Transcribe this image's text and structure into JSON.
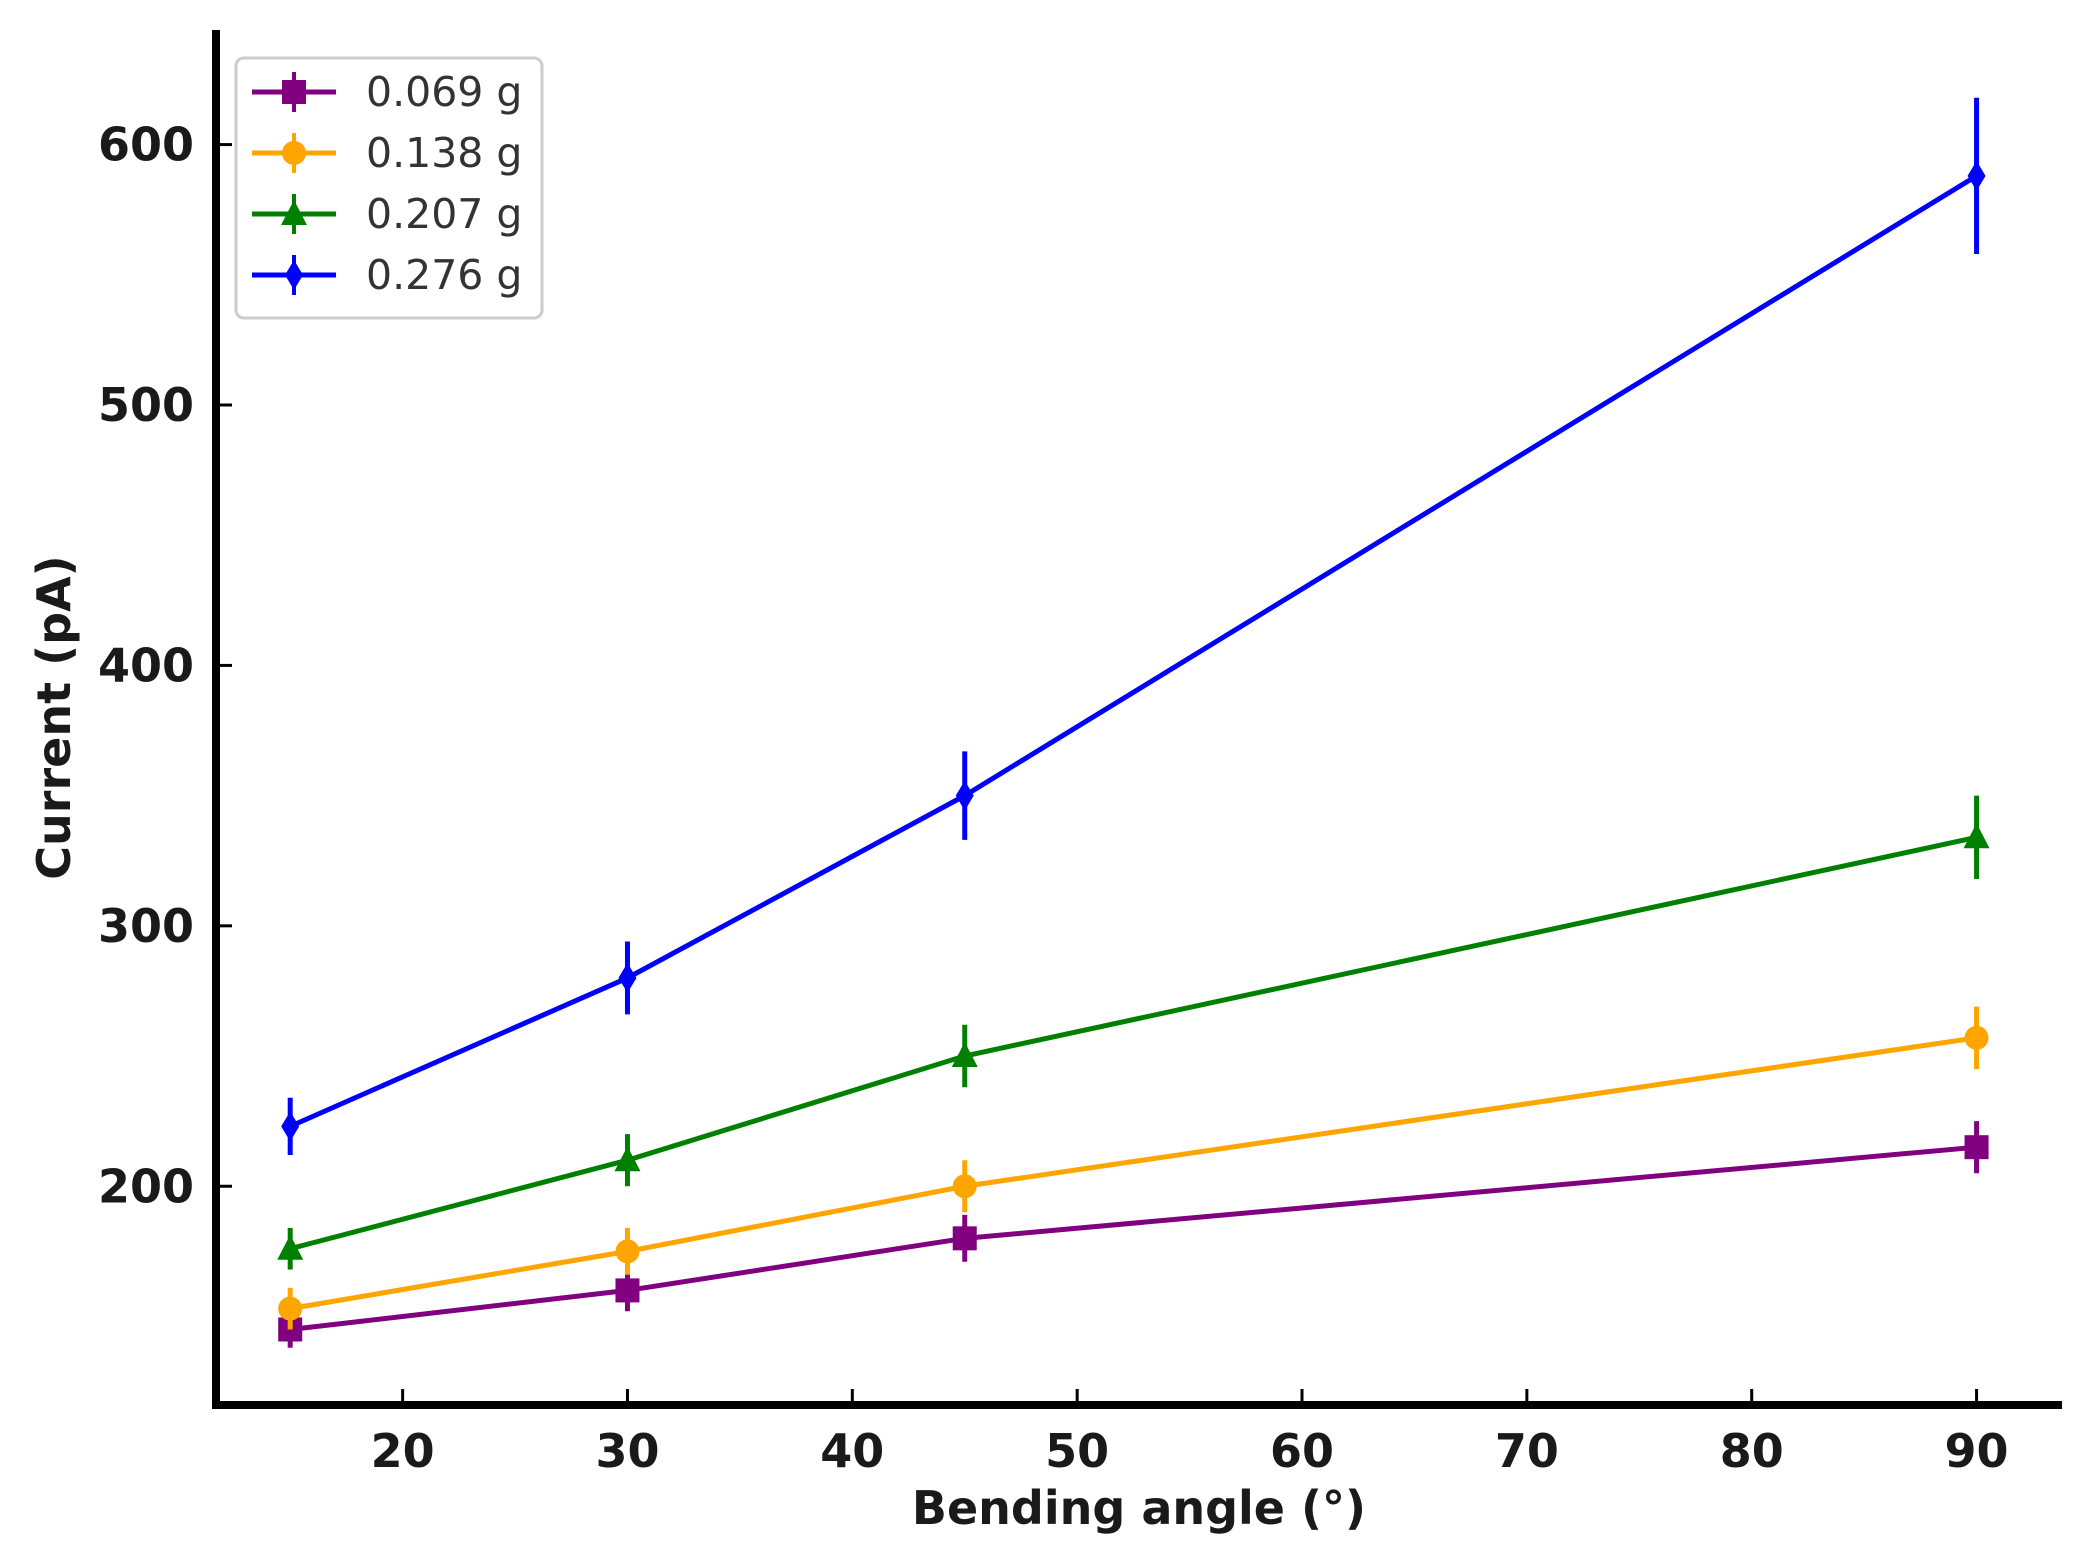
{
  "chart_data": {
    "type": "line",
    "title": "",
    "xlabel": "Bending angle (°)",
    "ylabel": "Current (pA)",
    "x": [
      15,
      30,
      45,
      90
    ],
    "xlim": [
      11.7,
      93.8
    ],
    "ylim": [
      116,
      644
    ],
    "xticks": [
      20,
      30,
      40,
      50,
      60,
      70,
      80,
      90
    ],
    "yticks": [
      200,
      300,
      400,
      500,
      600
    ],
    "grid": false,
    "legend_position": "top-left",
    "series": [
      {
        "name": "0.069 g",
        "color": "#800080",
        "marker": "square",
        "values": [
          145,
          160,
          180,
          215
        ],
        "errors": [
          7,
          8,
          9,
          10
        ]
      },
      {
        "name": "0.138 g",
        "color": "#FFA500",
        "marker": "circle",
        "values": [
          153,
          175,
          200,
          257
        ],
        "errors": [
          8,
          9,
          10,
          12
        ]
      },
      {
        "name": "0.207 g",
        "color": "#008000",
        "marker": "triangle",
        "values": [
          176,
          210,
          250,
          334
        ],
        "errors": [
          8,
          10,
          12,
          16
        ]
      },
      {
        "name": "0.276 g",
        "color": "#0000FF",
        "marker": "diamond",
        "values": [
          223,
          280,
          350,
          588
        ],
        "errors": [
          11,
          14,
          17,
          30
        ]
      }
    ]
  }
}
